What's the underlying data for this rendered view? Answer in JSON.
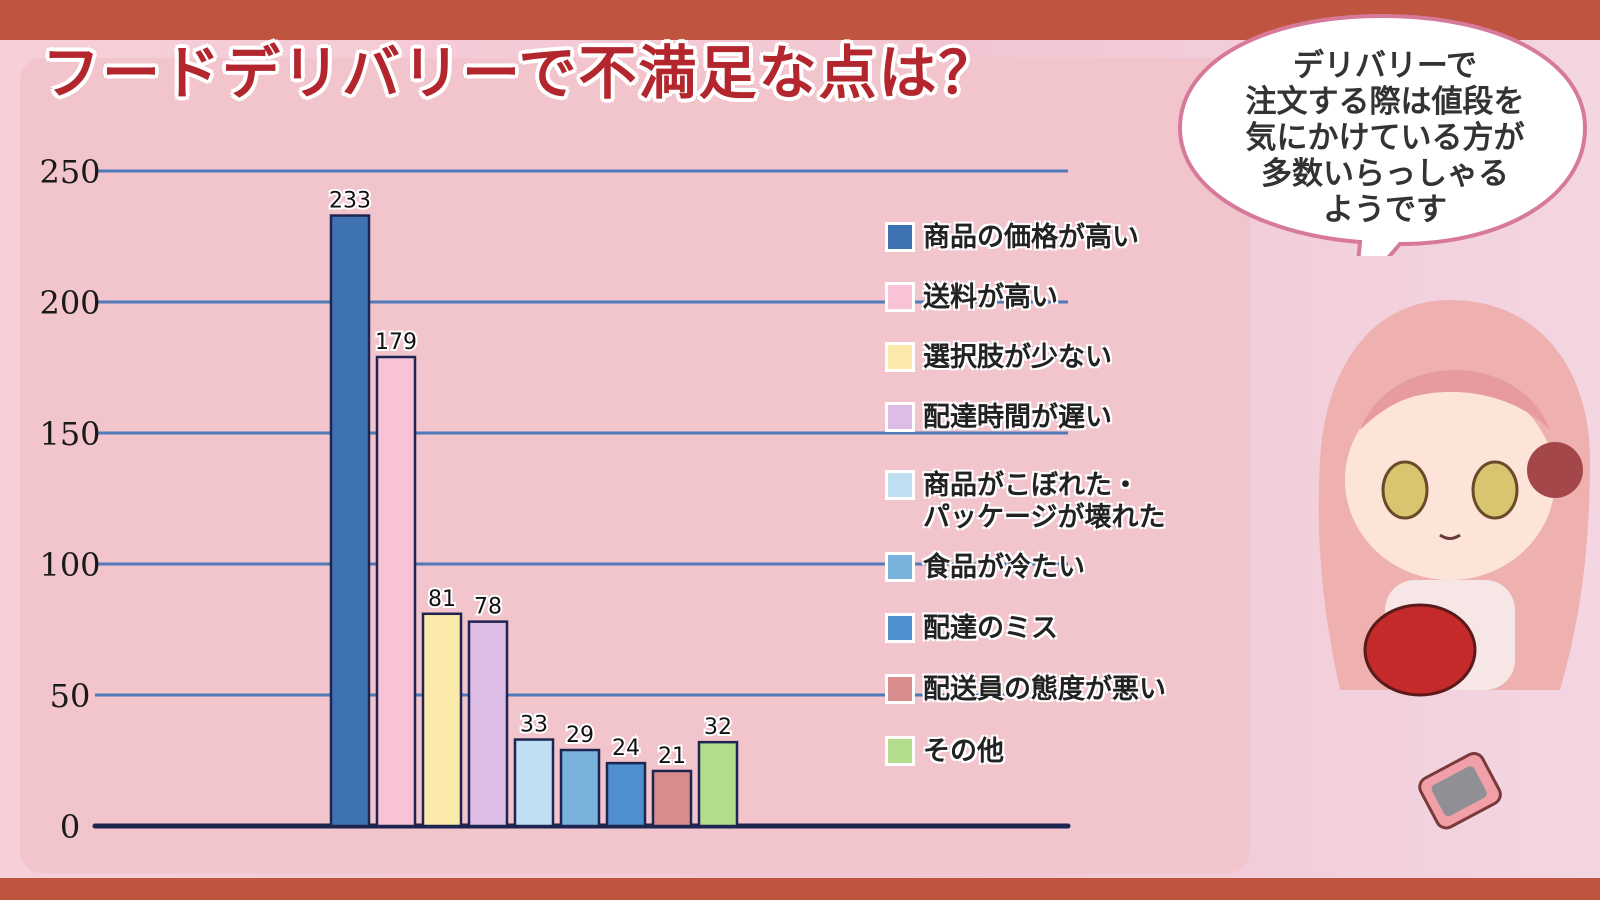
{
  "title": "フードデリバリーで不満足な点は？",
  "bubble": {
    "text": "デリバリーで\n注文する際は値段を\n気にかけている方が\n多数いらっしゃる\nようです"
  },
  "legend": [
    {
      "label": "商品の価格が高い",
      "color": "#3f72b3"
    },
    {
      "label": "送料が高い",
      "color": "#f8c3d6"
    },
    {
      "label": "選択肢が少ない",
      "color": "#fbe9a9"
    },
    {
      "label": "配達時間が遅い",
      "color": "#ddbde6"
    },
    {
      "label": "商品がこぼれた・\nパッケージが壊れた",
      "color": "#bfe0f2"
    },
    {
      "label": "食品が冷たい",
      "color": "#79b3dc"
    },
    {
      "label": "配達のミス",
      "color": "#4d8fcf"
    },
    {
      "label": "配送員の態度が悪い",
      "color": "#d98c8c"
    },
    {
      "label": "その他",
      "color": "#b3dc8c"
    }
  ],
  "chart_data": {
    "type": "bar",
    "categories": [
      "商品の価格が高い",
      "送料が高い",
      "選択肢が少ない",
      "配達時間が遅い",
      "商品がこぼれた・パッケージが壊れた",
      "食品が冷たい",
      "配達のミス",
      "配送員の態度が悪い",
      "その他"
    ],
    "values": [
      233,
      179,
      81,
      78,
      33,
      29,
      24,
      21,
      32
    ],
    "value_labels": [
      "233",
      "179",
      "81",
      "78",
      "33",
      "29",
      "24",
      "21",
      "32"
    ],
    "colors": [
      "#3f72b3",
      "#f8c3d6",
      "#fbe9a9",
      "#ddbde6",
      "#bfe0f2",
      "#79b3dc",
      "#4d8fcf",
      "#d98c8c",
      "#b3dc8c"
    ],
    "yticks": [
      0,
      50,
      100,
      150,
      200,
      250
    ],
    "ylim": [
      0,
      250
    ],
    "grid": true,
    "legend_position": "right",
    "grid_color": "#4f7ab8",
    "axis_color": "#1d2550"
  }
}
